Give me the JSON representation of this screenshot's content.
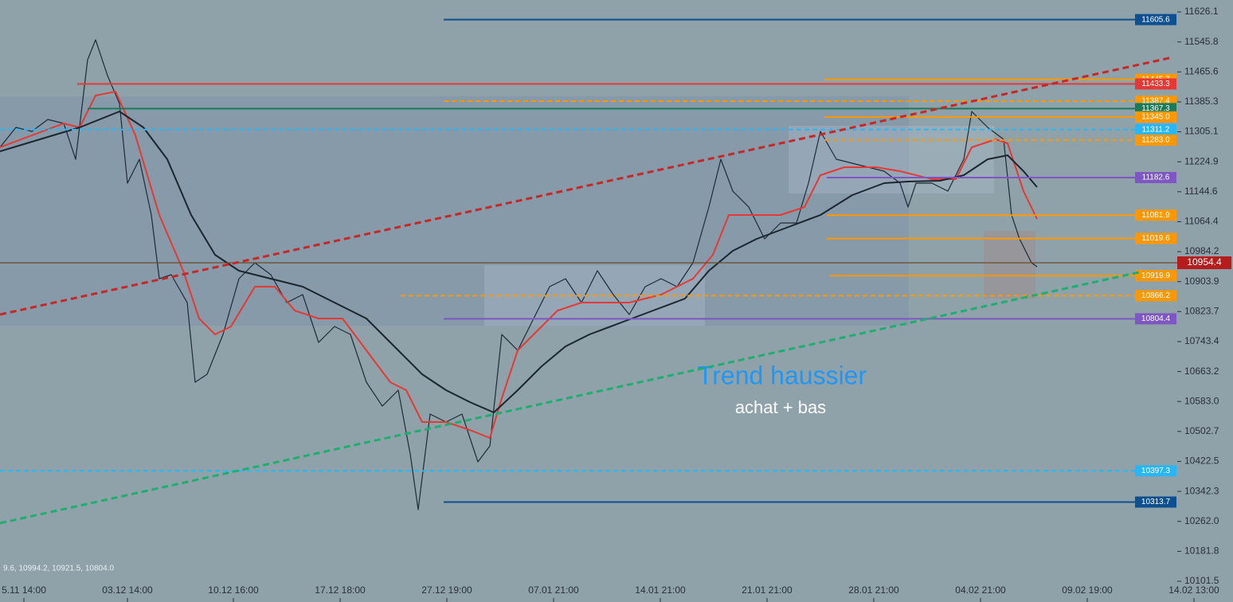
{
  "chart_data": {
    "type": "line",
    "xlim": [
      0,
      147.8
    ],
    "ylim": [
      10046.1,
      11658.1
    ],
    "xticks": [
      {
        "value": 3.0,
        "label": "5.11 14:00"
      },
      {
        "value": 16.0,
        "label": "03.12 14:00"
      },
      {
        "value": 29.3,
        "label": "10.12 16:00"
      },
      {
        "value": 42.7,
        "label": "17.12 18:00"
      },
      {
        "value": 56.1,
        "label": "27.12 19:00"
      },
      {
        "value": 69.5,
        "label": "07.01 21:00"
      },
      {
        "value": 82.9,
        "label": "14.01 21:00"
      },
      {
        "value": 96.3,
        "label": "21.01 21:00"
      },
      {
        "value": 109.7,
        "label": "28.01 21:00"
      },
      {
        "value": 123.1,
        "label": "04.02 21:00"
      },
      {
        "value": 136.5,
        "label": "09.02 19:00"
      },
      {
        "value": 149.9,
        "label": "14.02 13:00"
      }
    ],
    "yticks": [
      11626.1,
      11545.8,
      11465.6,
      11385.3,
      11305.1,
      11224.9,
      11144.6,
      11064.4,
      10984.2,
      10903.9,
      10823.7,
      10743.4,
      10663.2,
      {
        "value": 10583.0,
        "label": "10583.0"
      },
      10502.7,
      10422.5,
      10342.3,
      {
        "value": 10262.0,
        "label": "10262.0"
      },
      10181.8,
      10101.5
    ],
    "series": [
      {
        "color": "#1f2a35",
        "width": 1.2,
        "x": [
          0,
          2,
          4,
          6,
          8,
          9.5,
          11,
          12,
          13.5,
          15,
          16,
          17.5,
          19,
          20,
          21.5,
          23.5,
          24.5,
          26,
          28,
          30,
          32,
          34,
          36,
          38,
          40,
          42,
          44,
          46,
          48,
          50,
          51.5,
          52.5,
          54,
          56,
          58,
          60,
          61.5,
          63,
          65,
          67,
          69,
          71,
          73,
          75,
          77,
          79,
          81,
          83,
          85,
          87,
          89,
          90.5,
          92,
          94,
          96,
          98,
          100,
          101.5,
          103,
          105,
          107,
          109,
          111,
          113,
          114,
          115,
          117,
          119,
          121,
          122,
          124,
          126,
          127,
          128,
          129.5,
          130.2
        ],
        "values": [
          11263.6,
          11316.9,
          11306.3,
          11338.3,
          11327.6,
          11231.7,
          11498.2,
          11551.5,
          11455.5,
          11380.9,
          11167.7,
          11231.7,
          11082.4,
          10911.8,
          10922.5,
          10847.9,
          10634.6,
          10656.0,
          10762.6,
          10911.8,
          10954.5,
          10922.5,
          10847.9,
          10869.2,
          10741.3,
          10783.9,
          10762.6,
          10634.6,
          10570.7,
          10613.3,
          10442.7,
          10293.5,
          10549.4,
          10528.0,
          10549.4,
          10421.4,
          10464.1,
          10762.6,
          10719.9,
          10805.2,
          10890.5,
          10911.8,
          10847.9,
          10933.1,
          10869.2,
          10815.9,
          10890.5,
          10911.8,
          10890.5,
          10954.5,
          11103.7,
          11231.7,
          11146.4,
          11103.7,
          11018.4,
          11061.1,
          11061.1,
          11167.7,
          11306.3,
          11231.7,
          11221.0,
          11210.3,
          11199.7,
          11167.7,
          11103.7,
          11167.7,
          11167.7,
          11146.4,
          11231.7,
          11359.6,
          11316.9,
          11285.0,
          11082.4,
          11018.4,
          10954.5,
          10943.8
        ]
      },
      {
        "color": "#e53935",
        "width": 2,
        "x": [
          0,
          4,
          8,
          10,
          12,
          14.5,
          17,
          20,
          23,
          25,
          27,
          29,
          32,
          34.5,
          37,
          40,
          43,
          46,
          49,
          51,
          53,
          56,
          59,
          61.5,
          63,
          65,
          67,
          70,
          73,
          76,
          79,
          83,
          87,
          89.5,
          91.5,
          95,
          98,
          101,
          103,
          106,
          110,
          113,
          117,
          120,
          122,
          125,
          126.5,
          128.5,
          130.2
        ],
        "values": [
          11263.6,
          11295.6,
          11327.6,
          11316.9,
          11402.2,
          11412.9,
          11295.6,
          11082.4,
          10933.1,
          10805.2,
          10762.6,
          10783.9,
          10890.5,
          10890.5,
          10826.5,
          10805.2,
          10805.2,
          10719.9,
          10634.6,
          10613.3,
          10528.0,
          10528.0,
          10506.7,
          10485.4,
          10592.0,
          10719.9,
          10762.6,
          10826.5,
          10847.9,
          10847.9,
          10847.9,
          10869.2,
          10911.8,
          10975.8,
          11082.4,
          11082.4,
          11082.4,
          11103.7,
          11189.0,
          11210.3,
          11210.3,
          11199.7,
          11178.3,
          11178.3,
          11263.6,
          11285.0,
          11274.3,
          11146.4,
          11071.8
        ]
      },
      {
        "color": "#1c2630",
        "width": 2,
        "x": [
          0,
          5,
          10,
          15,
          18,
          21,
          24,
          27,
          30,
          34,
          38,
          42,
          46,
          50,
          53,
          56,
          59,
          62,
          65,
          68,
          71,
          74,
          78,
          82,
          86,
          89,
          92,
          95,
          99,
          103,
          107,
          111,
          114,
          118,
          121,
          124,
          126.5,
          128.5,
          130.2
        ],
        "values": [
          11253.0,
          11285.0,
          11316.9,
          11359.6,
          11316.9,
          11231.7,
          11082.4,
          10975.8,
          10933.1,
          10911.8,
          10890.5,
          10847.9,
          10805.2,
          10719.9,
          10656.0,
          10613.3,
          10581.4,
          10553.6,
          10613.3,
          10677.3,
          10730.6,
          10762.6,
          10794.6,
          10826.5,
          10858.5,
          10933.1,
          10986.5,
          11018.4,
          11050.4,
          11082.4,
          11135.7,
          11167.7,
          11171.9,
          11174.1,
          11189.0,
          11231.7,
          11242.3,
          11199.7,
          11157.0
        ]
      }
    ],
    "levels": [
      {
        "value": 11605.6,
        "color": "#0d4f8f",
        "start": 55.7,
        "dashed": false
      },
      {
        "value": 11445.7,
        "color": "#ff9800",
        "start": 103.5,
        "dashed": false
      },
      {
        "value": 11433.3,
        "color": "#e53935",
        "start": 9.7,
        "dashed": false
      },
      {
        "value": 11387.4,
        "color": "#ff9800",
        "start": 55.7,
        "dashed": true
      },
      {
        "value": 11367.3,
        "color": "#1b7a5a",
        "start": 11.0,
        "dashed": false
      },
      {
        "value": {
          "value": 11345.0,
          "label": "11345.0"
        },
        "color": "#ff9800",
        "start": 103.5,
        "dashed": false
      },
      {
        "value": 11311.2,
        "color": "#29b6f6",
        "start": 0,
        "dashed": true
      },
      {
        "value": {
          "value": 11283.0,
          "label": "11283.0"
        },
        "color": "#ff9800",
        "start": 103.5,
        "dashed": true
      },
      {
        "value": 11182.6,
        "color": "#7e57c2",
        "start": 103.8,
        "dashed": false
      },
      {
        "value": 11081.9,
        "color": "#ff9800",
        "start": 103.8,
        "dashed": false
      },
      {
        "value": 11019.6,
        "color": "#ff9800",
        "start": 103.8,
        "dashed": false
      },
      {
        "value": 10919.9,
        "color": "#ff9800",
        "start": 104.2,
        "dashed": false
      },
      {
        "value": 10866.2,
        "color": "#ff9800",
        "start": 50.3,
        "dashed": true
      },
      {
        "value": 10804.4,
        "color": "#7e57c2",
        "start": 55.7,
        "dashed": false
      },
      {
        "value": 10397.3,
        "color": "#29b6f6",
        "start": 0,
        "dashed": true
      },
      {
        "value": 10313.7,
        "color": "#0d4f8f",
        "start": 55.7,
        "dashed": false
      }
    ],
    "trendlines": [
      {
        "color": "#c62828",
        "x": [
          0,
          147.2
        ],
        "values": [
          10815.9,
          11504.6
        ]
      },
      {
        "color": "#1fae6f",
        "x": [
          0,
          143.0
        ],
        "values": [
          10257.3,
          10929.0
        ]
      }
    ],
    "last": {
      "value": 10954.4,
      "color": "#b71c1c",
      "line": "#6b4a2a"
    },
    "annotations": [
      {
        "text": "Trend haussier",
        "color": "#2196f3"
      },
      {
        "text": "achat + bas",
        "color": "#ffffff"
      }
    ],
    "info": "9.6, 10994.2, 10921.5, 10804.0"
  }
}
